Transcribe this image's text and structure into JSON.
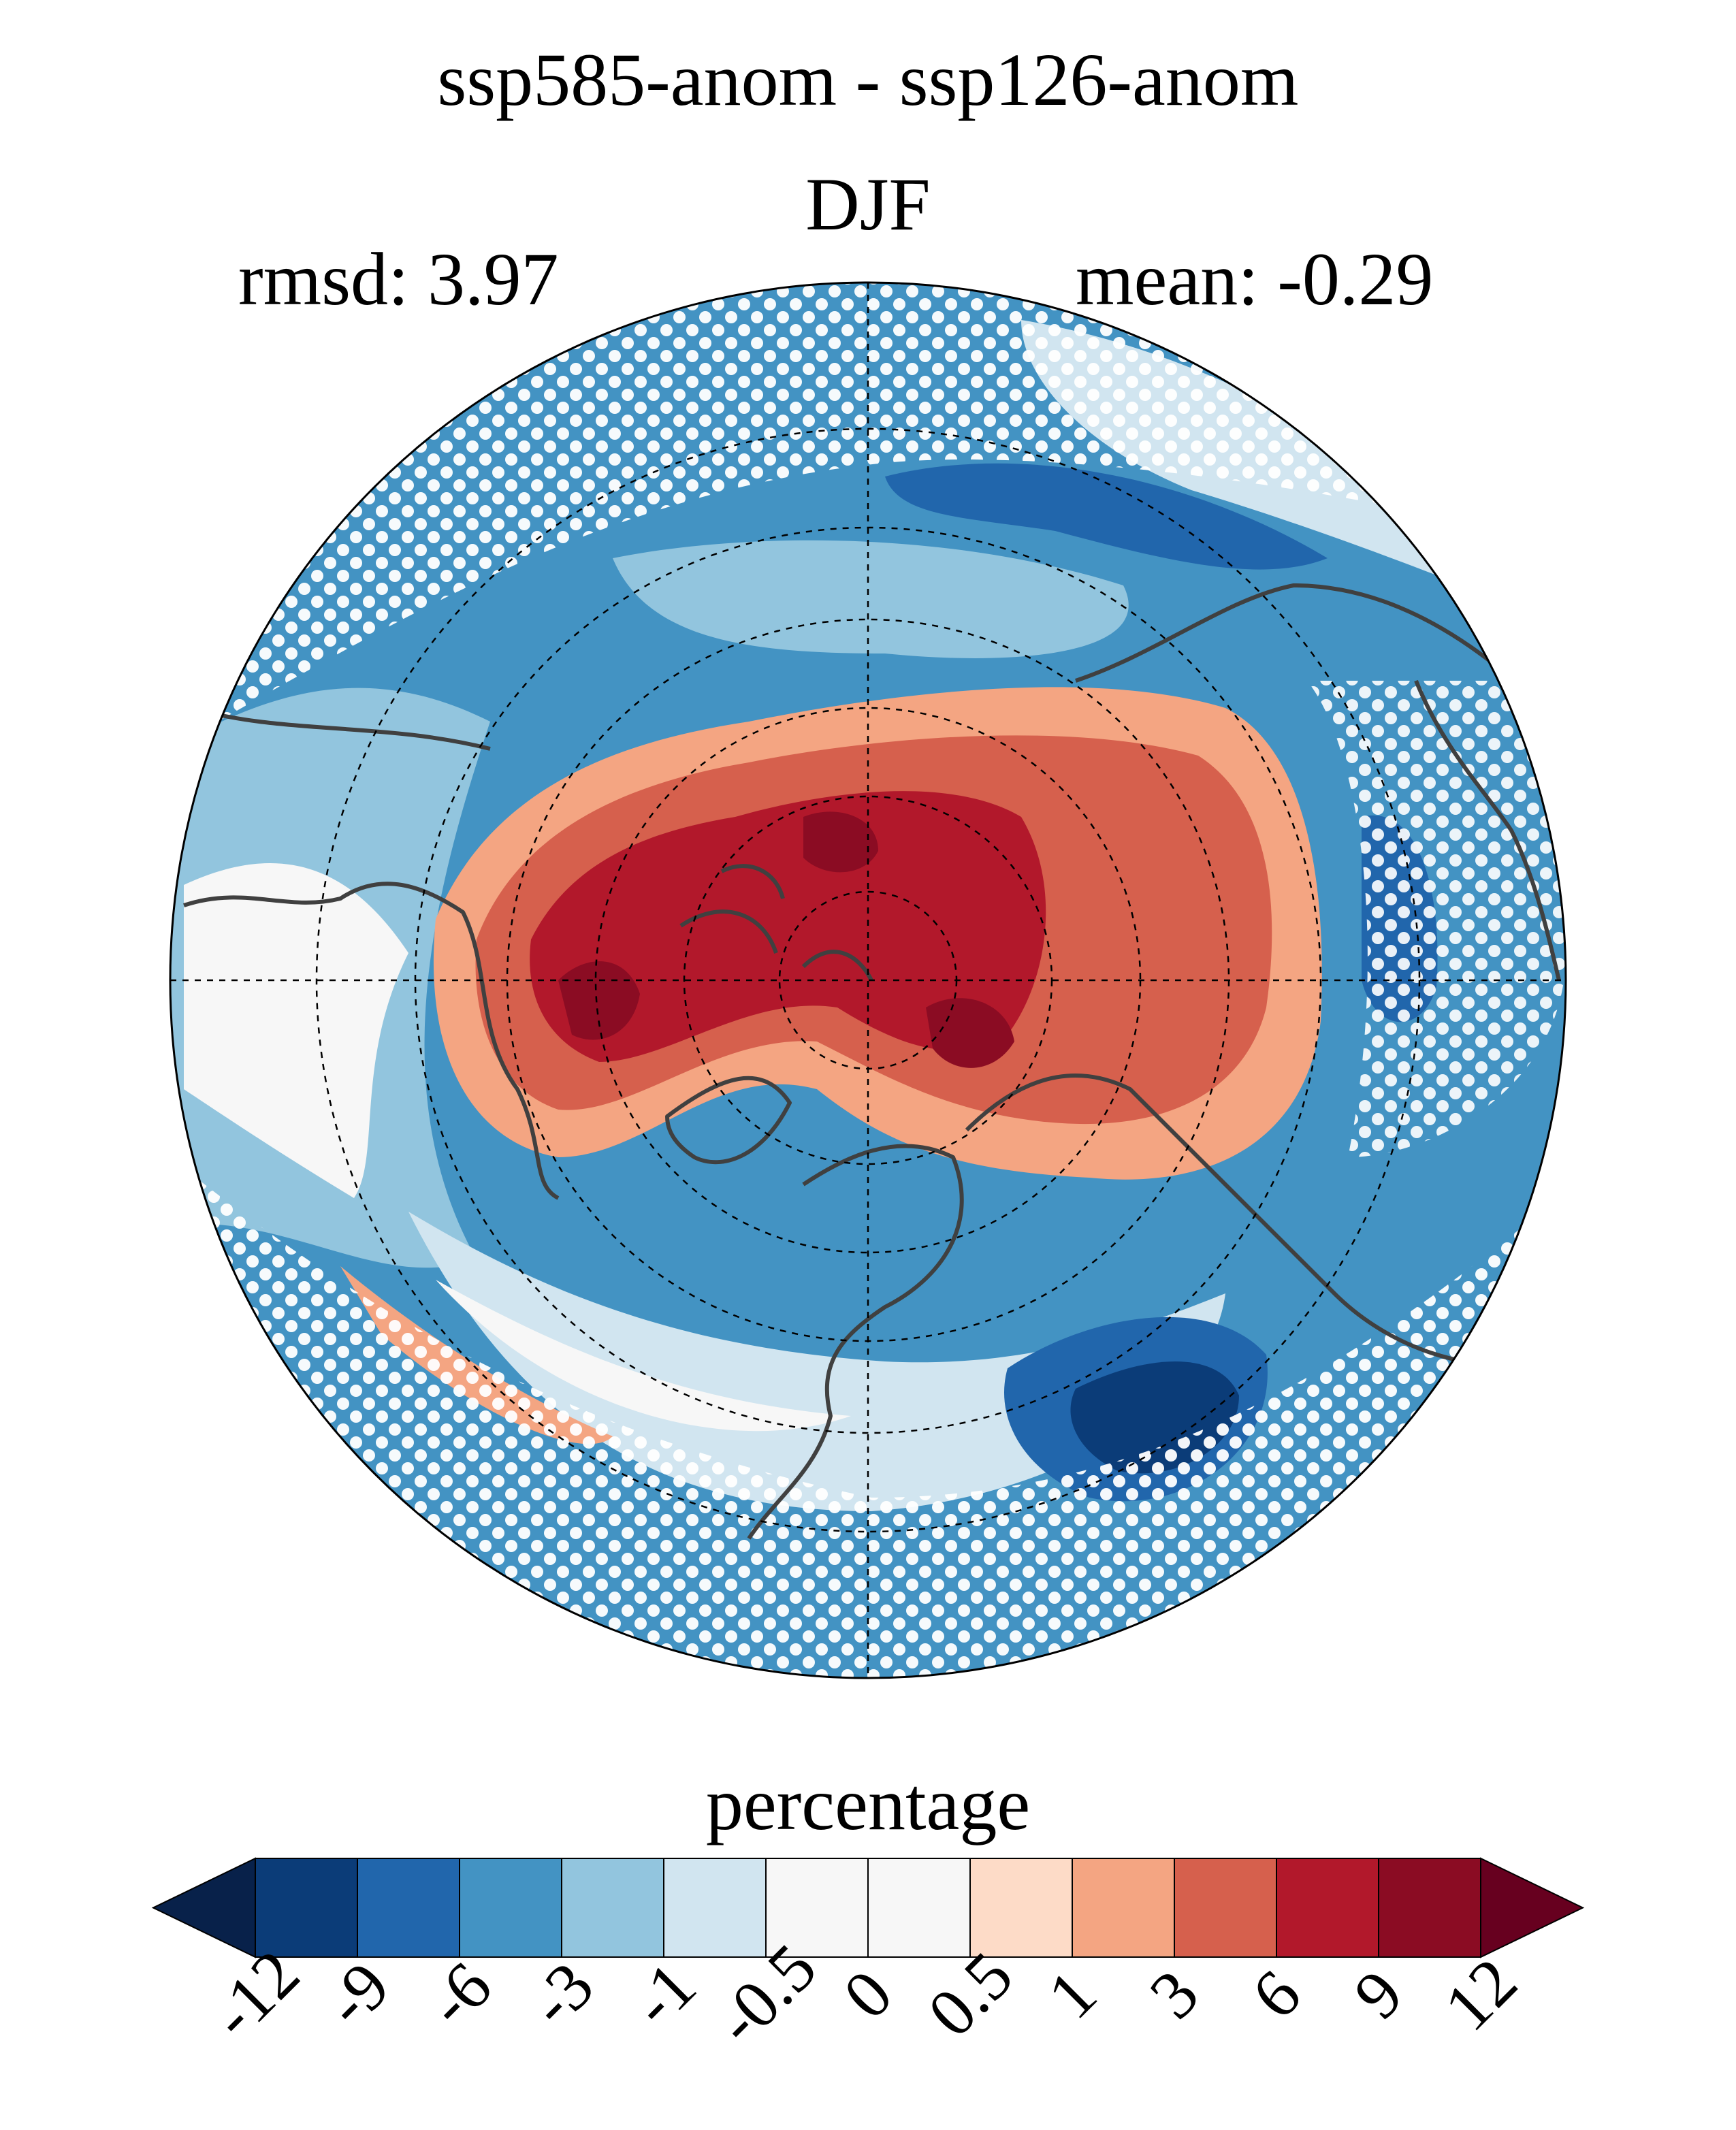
{
  "title": "ssp585-anom - ssp126-anom",
  "season": "DJF",
  "stats": {
    "rmsd": "rmsd: 3.97",
    "mean": "mean: -0.29"
  },
  "colorbar": {
    "label": "percentage",
    "ticks": [
      "-12",
      "-9",
      "-6",
      "-3",
      "-1",
      "-0.5",
      "0",
      "0.5",
      "1",
      "3",
      "6",
      "9",
      "12"
    ],
    "colors": [
      "#08214a",
      "#0b3c78",
      "#2166ac",
      "#4393c3",
      "#92c5de",
      "#d1e5f0",
      "#f7f7f7",
      "#f7f7f7",
      "#fddbc7",
      "#f4a582",
      "#d6604d",
      "#b2182b",
      "#8b0c23",
      "#67001f"
    ]
  },
  "map": {
    "projection": "north-polar-stereographic",
    "stippling": "white dots",
    "ocean_color": "#4393c3",
    "coastline_color": "#404040"
  }
}
